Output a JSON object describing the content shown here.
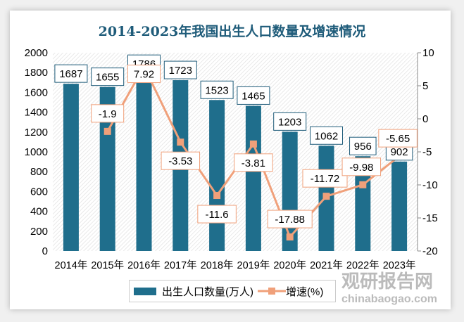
{
  "chart_data": {
    "type": "bar+line",
    "title": "2014-2023年我国出生人口数量及增速情况",
    "categories": [
      "2014年",
      "2015年",
      "2016年",
      "2017年",
      "2018年",
      "2019年",
      "2020年",
      "2021年",
      "2022年",
      "2023年"
    ],
    "series": [
      {
        "name": "出生人口数量(万人)",
        "type": "bar",
        "axis": "left",
        "color": "#1f6e8c",
        "values": [
          1687,
          1655,
          1786,
          1723,
          1523,
          1465,
          1203,
          1062,
          956,
          902
        ]
      },
      {
        "name": "增速(%)",
        "type": "line",
        "axis": "right",
        "color": "#f0a07a",
        "values": [
          null,
          -1.9,
          7.92,
          -3.53,
          -11.6,
          -3.81,
          -17.88,
          -11.72,
          -9.98,
          -5.65
        ]
      }
    ],
    "left_axis": {
      "range": [
        0,
        2000
      ],
      "ticks": [
        0,
        200,
        400,
        600,
        800,
        1000,
        1200,
        1400,
        1600,
        1800,
        2000
      ]
    },
    "right_axis": {
      "range": [
        -20,
        10
      ],
      "ticks": [
        -20,
        -15,
        -10,
        -5,
        0,
        5,
        10
      ]
    },
    "legend": "bottom"
  },
  "watermark": {
    "cn": "观研报告网",
    "en": "chinabaogao.com"
  }
}
